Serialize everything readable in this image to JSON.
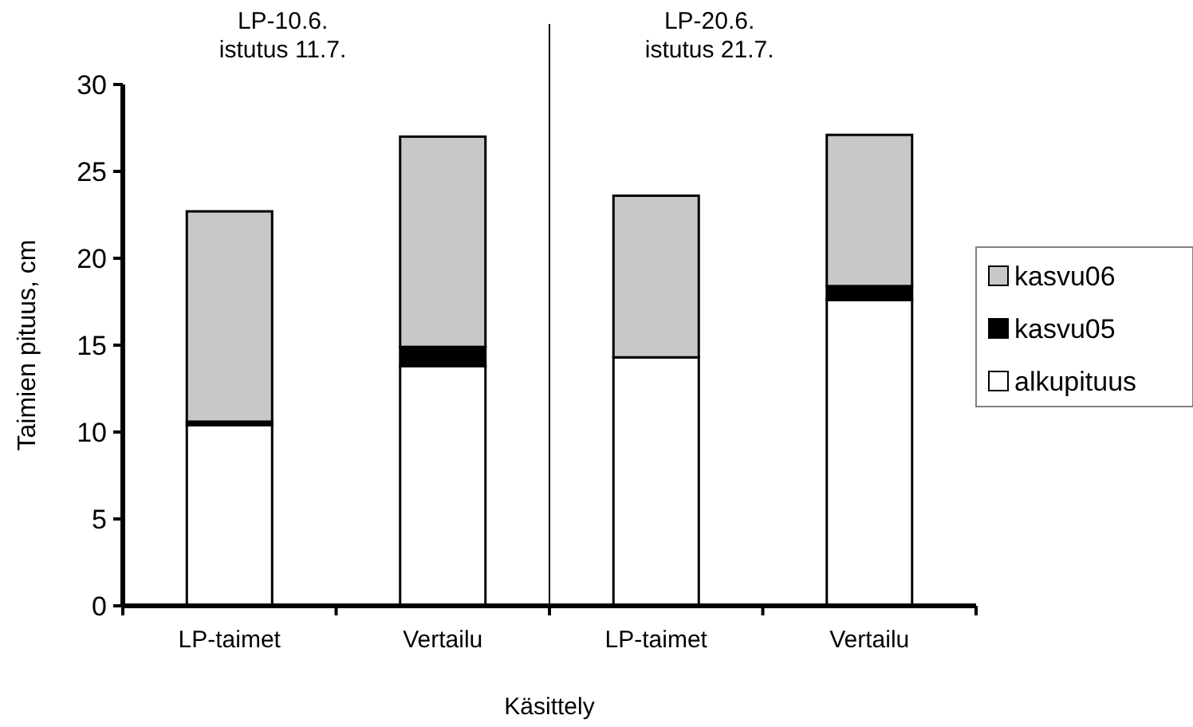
{
  "chart_data": {
    "type": "bar",
    "stacked": true,
    "xlabel": "Käsittely",
    "ylabel": "Taimien pituus, cm",
    "categories": [
      "LP-taimet",
      "Vertailu",
      "LP-taimet",
      "Vertailu"
    ],
    "series": [
      {
        "name": "alkupituus",
        "color": "#ffffff",
        "values": [
          10.4,
          13.8,
          14.3,
          17.6
        ]
      },
      {
        "name": "kasvu05",
        "color": "#000000",
        "values": [
          0.2,
          1.1,
          0,
          0.8
        ]
      },
      {
        "name": "kasvu06",
        "color": "#c8c8c8",
        "values": [
          12.1,
          12.1,
          9.3,
          8.7
        ]
      }
    ],
    "ylim": [
      0,
      30
    ],
    "yticks": [
      0,
      5,
      10,
      15,
      20,
      25,
      30
    ],
    "grid": false,
    "legend": "right",
    "annotations": [
      "LP-10.6.\nistutus 11.7.",
      "LP-20.6.\nistutus 21.7."
    ]
  }
}
